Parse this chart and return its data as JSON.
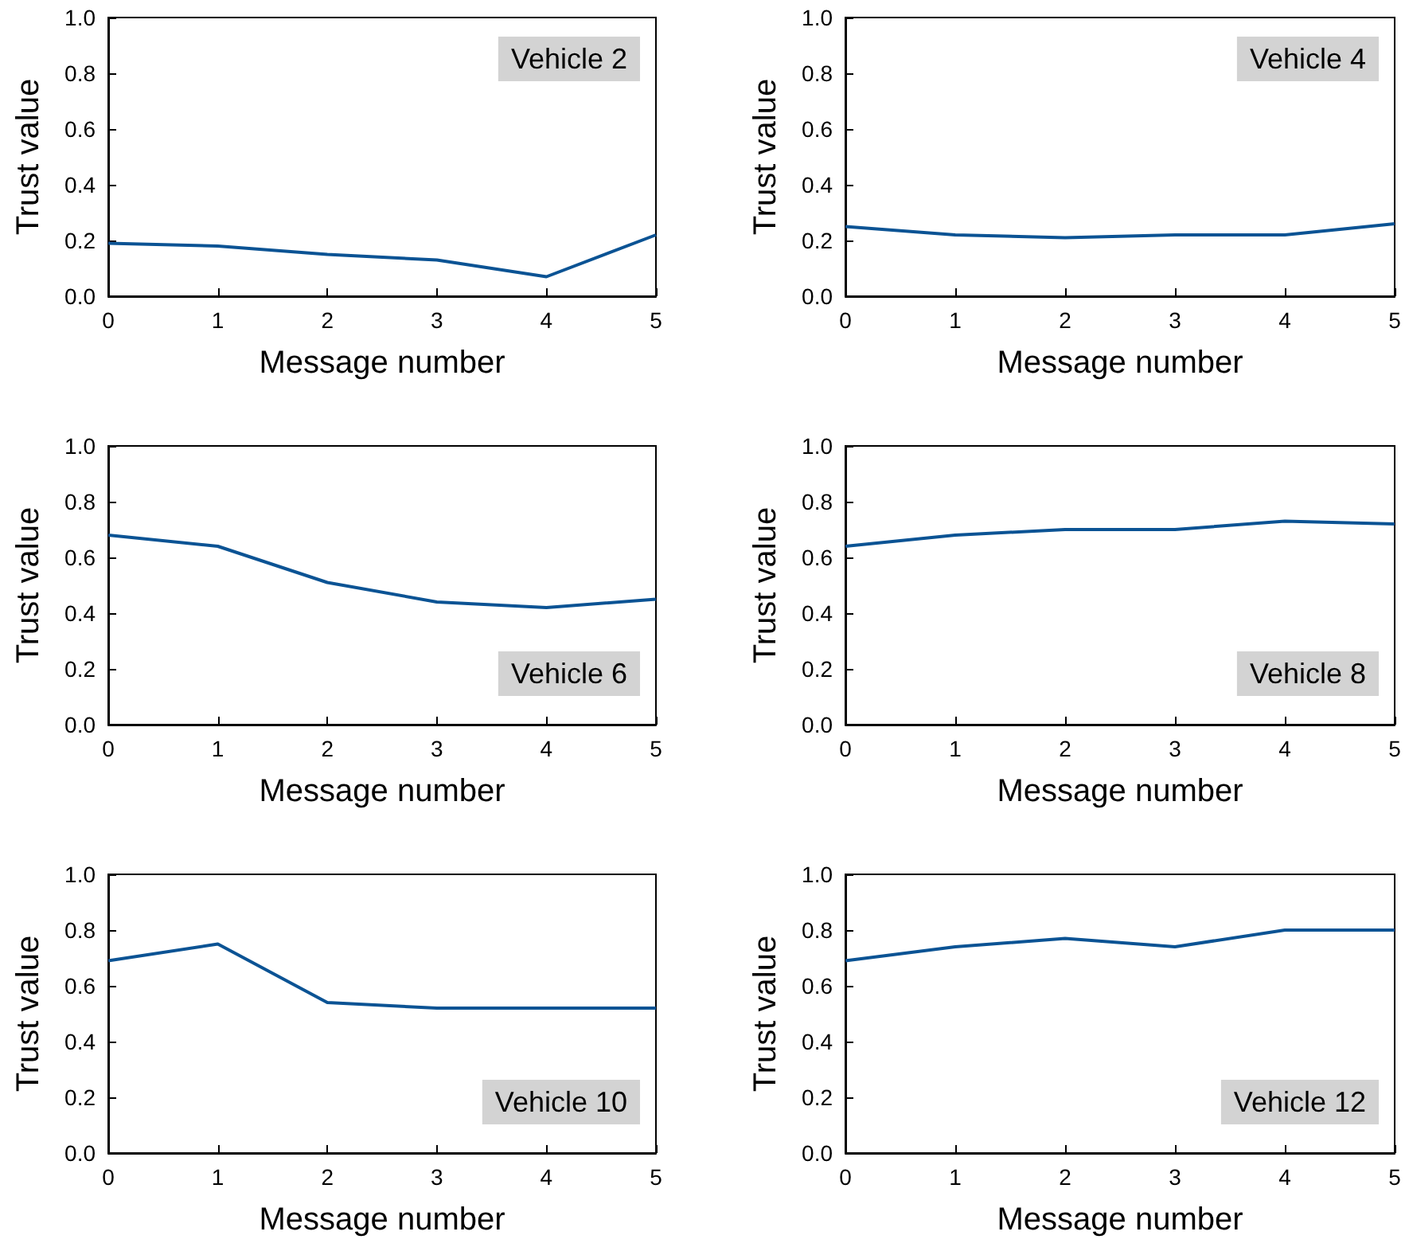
{
  "chart_data": [
    {
      "type": "line",
      "xlabel": "Message number",
      "ylabel": "Trust value",
      "annotations": [
        "Vehicle 2"
      ],
      "x": [
        0,
        1,
        2,
        3,
        4,
        5
      ],
      "series": [
        {
          "color": "#0b5394",
          "values": [
            0.19,
            0.18,
            0.15,
            0.13,
            0.07,
            0.22
          ]
        }
      ],
      "xlim": [
        0,
        5
      ],
      "xticks": [
        0,
        1,
        2,
        3,
        4,
        5
      ],
      "ylim": [
        0,
        1
      ],
      "yticks": [
        {
          "value": 0,
          "label": "0.0"
        },
        {
          "value": 0.2,
          "label": "0.2"
        },
        {
          "value": 0.4,
          "label": "0.4"
        },
        {
          "value": 0.6,
          "label": "0.6"
        },
        {
          "value": 0.8,
          "label": "0.8"
        },
        {
          "value": 1,
          "label": "1.0"
        }
      ],
      "grid": false,
      "marker": "none",
      "line_style": "solid"
    },
    {
      "type": "line",
      "xlabel": "Message number",
      "ylabel": "Trust value",
      "annotations": [
        "Vehicle 4"
      ],
      "x": [
        0,
        1,
        2,
        3,
        4,
        5
      ],
      "series": [
        {
          "color": "#0b5394",
          "values": [
            0.25,
            0.22,
            0.21,
            0.22,
            0.22,
            0.26
          ]
        }
      ],
      "xlim": [
        0,
        5
      ],
      "xticks": [
        0,
        1,
        2,
        3,
        4,
        5
      ],
      "ylim": [
        0,
        1
      ],
      "yticks": [
        {
          "value": 0,
          "label": "0.0"
        },
        {
          "value": 0.2,
          "label": "0.2"
        },
        {
          "value": 0.4,
          "label": "0.4"
        },
        {
          "value": 0.6,
          "label": "0.6"
        },
        {
          "value": 0.8,
          "label": "0.8"
        },
        {
          "value": 1,
          "label": "1.0"
        }
      ],
      "grid": false,
      "marker": "none",
      "line_style": "solid"
    },
    {
      "type": "line",
      "xlabel": "Message number",
      "ylabel": "Trust value",
      "annotations": [
        "Vehicle 6"
      ],
      "x": [
        0,
        1,
        2,
        3,
        4,
        5
      ],
      "series": [
        {
          "color": "#0b5394",
          "values": [
            0.68,
            0.64,
            0.51,
            0.44,
            0.42,
            0.45
          ]
        }
      ],
      "xlim": [
        0,
        5
      ],
      "xticks": [
        0,
        1,
        2,
        3,
        4,
        5
      ],
      "ylim": [
        0,
        1
      ],
      "yticks": [
        {
          "value": 0,
          "label": "0.0"
        },
        {
          "value": 0.2,
          "label": "0.2"
        },
        {
          "value": 0.4,
          "label": "0.4"
        },
        {
          "value": 0.6,
          "label": "0.6"
        },
        {
          "value": 0.8,
          "label": "0.8"
        },
        {
          "value": 1,
          "label": "1.0"
        }
      ],
      "grid": false,
      "marker": "none",
      "line_style": "solid"
    },
    {
      "type": "line",
      "xlabel": "Message number",
      "ylabel": "Trust value",
      "annotations": [
        "Vehicle 8"
      ],
      "x": [
        0,
        1,
        2,
        3,
        4,
        5
      ],
      "series": [
        {
          "color": "#0b5394",
          "values": [
            0.64,
            0.68,
            0.7,
            0.7,
            0.73,
            0.72
          ]
        }
      ],
      "xlim": [
        0,
        5
      ],
      "xticks": [
        0,
        1,
        2,
        3,
        4,
        5
      ],
      "ylim": [
        0,
        1
      ],
      "yticks": [
        {
          "value": 0,
          "label": "0.0"
        },
        {
          "value": 0.2,
          "label": "0.2"
        },
        {
          "value": 0.4,
          "label": "0.4"
        },
        {
          "value": 0.6,
          "label": "0.6"
        },
        {
          "value": 0.8,
          "label": "0.8"
        },
        {
          "value": 1,
          "label": "1.0"
        }
      ],
      "grid": false,
      "marker": "none",
      "line_style": "solid"
    },
    {
      "type": "line",
      "xlabel": "Message number",
      "ylabel": "Trust value",
      "annotations": [
        "Vehicle 10"
      ],
      "x": [
        0,
        1,
        2,
        3,
        4,
        5
      ],
      "series": [
        {
          "color": "#0b5394",
          "values": [
            0.69,
            0.75,
            0.54,
            0.52,
            0.52,
            0.52
          ]
        }
      ],
      "xlim": [
        0,
        5
      ],
      "xticks": [
        0,
        1,
        2,
        3,
        4,
        5
      ],
      "ylim": [
        0,
        1
      ],
      "yticks": [
        {
          "value": 0,
          "label": "0.0"
        },
        {
          "value": 0.2,
          "label": "0.2"
        },
        {
          "value": 0.4,
          "label": "0.4"
        },
        {
          "value": 0.6,
          "label": "0.6"
        },
        {
          "value": 0.8,
          "label": "0.8"
        },
        {
          "value": 1,
          "label": "1.0"
        }
      ],
      "grid": false,
      "marker": "none",
      "line_style": "solid"
    },
    {
      "type": "line",
      "xlabel": "Message number",
      "ylabel": "Trust value",
      "annotations": [
        "Vehicle 12"
      ],
      "x": [
        0,
        1,
        2,
        3,
        4,
        5
      ],
      "series": [
        {
          "color": "#0b5394",
          "values": [
            0.69,
            0.74,
            0.77,
            0.74,
            0.8,
            0.8
          ]
        }
      ],
      "xlim": [
        0,
        5
      ],
      "xticks": [
        0,
        1,
        2,
        3,
        4,
        5
      ],
      "ylim": [
        0,
        1
      ],
      "yticks": [
        {
          "value": 0,
          "label": "0.0"
        },
        {
          "value": 0.2,
          "label": "0.2"
        },
        {
          "value": 0.4,
          "label": "0.4"
        },
        {
          "value": 0.6,
          "label": "0.6"
        },
        {
          "value": 0.8,
          "label": "0.8"
        },
        {
          "value": 1,
          "label": "1.0"
        }
      ],
      "grid": false,
      "marker": "none",
      "line_style": "solid"
    }
  ]
}
